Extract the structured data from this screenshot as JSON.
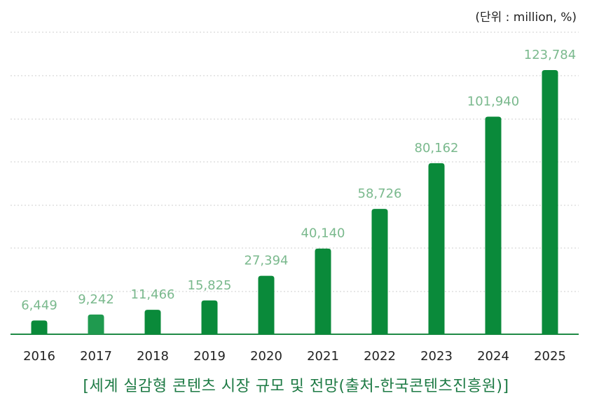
{
  "unit_label": "(단위 : million, %)",
  "caption": {
    "open": "[",
    "text": "세계 실감형 콘텐츠 시장 규모 및 전망(출처-한국콘텐츠진흥원)",
    "close": "]"
  },
  "colors": {
    "bar": "#0a8a3a",
    "bar_2017": "#1f9a4f",
    "value_label": "#7ab98d",
    "grid": "#cfcfcf",
    "baseline": "#1f8a45",
    "axis_text": "#222222",
    "caption": "#1d7a44"
  },
  "chart_data": {
    "type": "bar",
    "title": "",
    "xlabel": "",
    "ylabel": "",
    "categories": [
      "2016",
      "2017",
      "2018",
      "2019",
      "2020",
      "2021",
      "2022",
      "2023",
      "2024",
      "2025"
    ],
    "values": [
      6449,
      9242,
      11466,
      15825,
      27394,
      40140,
      58726,
      80162,
      101940,
      123784
    ],
    "value_labels": [
      "6,449",
      "9,242",
      "11,466",
      "15,825",
      "27,394",
      "40,140",
      "58,726",
      "80,162",
      "101,940",
      "123,784"
    ],
    "ylim": [
      0,
      140000
    ],
    "grid": true,
    "legend": "none"
  }
}
